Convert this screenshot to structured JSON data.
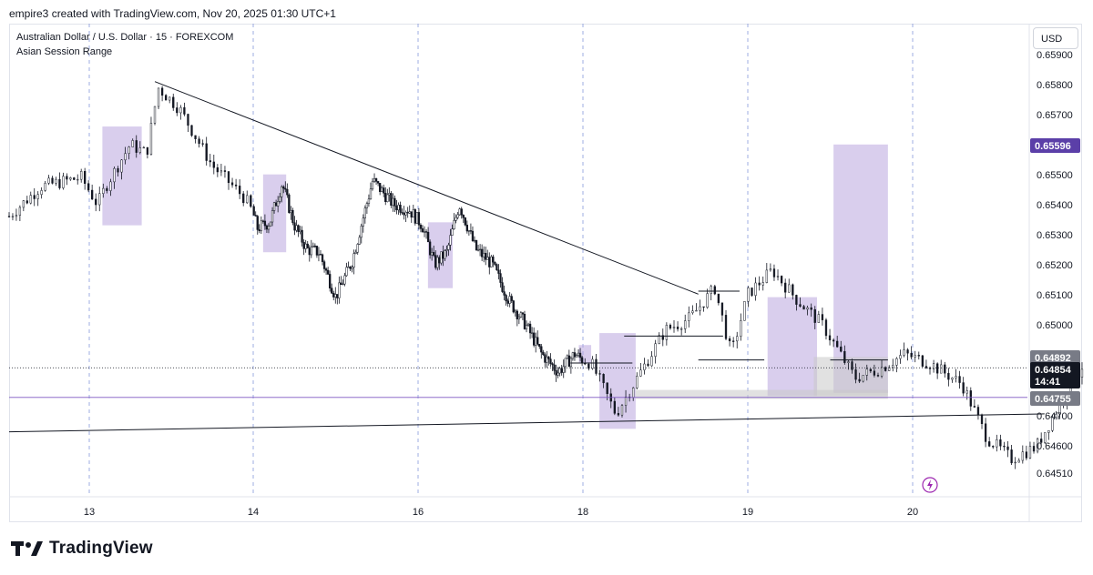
{
  "caption": "empire3 created with TradingView.com, Nov 20, 2025 01:30 UTC+1",
  "legend": {
    "symbol": "Australian Dollar / U.S. Dollar · 15 · FOREXCOM",
    "indicator": "Asian Session Range"
  },
  "currency_button": "USD",
  "brand": "TradingView",
  "colors": {
    "candle": "#131722",
    "session_box": "#b39ddb",
    "neutral_box": "#c8c8c8",
    "price_tag_dark": "#131722",
    "price_tag_purple": "#5b3fa8",
    "price_tag_gray": "#787b86",
    "grid_dash": "#6a7fd4",
    "h_line_purple": "#7e57c2"
  },
  "chart_data": {
    "type": "candlestick",
    "symbol": "AUDUSD",
    "timeframe": "15",
    "y_axis": {
      "ticks": [
        "0.65900",
        "0.65800",
        "0.65700",
        "0.65500",
        "0.65400",
        "0.65300",
        "0.65200",
        "0.65100",
        "0.65000",
        "0.64700",
        "0.64600",
        "0.64510"
      ],
      "highlight_labels": {
        "last_price": "0.64892",
        "current": "0.64854",
        "countdown": "14:41",
        "session_level": "0.65596",
        "lower_level": "0.64755"
      }
    },
    "x_axis": {
      "ticks": [
        "13",
        "14",
        "16",
        "18",
        "19",
        "20"
      ]
    },
    "trendlines": [
      {
        "name": "descending",
        "from": {
          "day": "13.4",
          "price": 0.6581
        },
        "to": {
          "day": "18.7",
          "price": 0.651
        }
      },
      {
        "name": "ascending",
        "from": {
          "day": "12.5",
          "price": 0.6464
        },
        "to": {
          "day": "20.8",
          "price": 0.647
        }
      }
    ],
    "price_path": [
      [
        12.5,
        0.6536
      ],
      [
        12.7,
        0.6546
      ],
      [
        12.95,
        0.6549
      ],
      [
        13.05,
        0.654
      ],
      [
        13.1,
        0.6546
      ],
      [
        13.25,
        0.656
      ],
      [
        13.35,
        0.6557
      ],
      [
        13.42,
        0.6579
      ],
      [
        13.55,
        0.6572
      ],
      [
        13.75,
        0.6553
      ],
      [
        13.95,
        0.6542
      ],
      [
        14.05,
        0.6532
      ],
      [
        14.2,
        0.6534
      ],
      [
        14.35,
        0.6547
      ],
      [
        14.5,
        0.6533
      ],
      [
        14.65,
        0.6525
      ],
      [
        14.8,
        0.6524
      ],
      [
        15.0,
        0.6509
      ],
      [
        15.2,
        0.6521
      ],
      [
        15.45,
        0.6548
      ],
      [
        15.7,
        0.654
      ],
      [
        15.9,
        0.6538
      ],
      [
        16.05,
        0.6533
      ],
      [
        16.2,
        0.652
      ],
      [
        16.35,
        0.6524
      ],
      [
        16.5,
        0.654
      ],
      [
        16.7,
        0.6525
      ],
      [
        16.9,
        0.652
      ],
      [
        17.1,
        0.6508
      ],
      [
        17.3,
        0.65
      ],
      [
        17.5,
        0.649
      ],
      [
        17.7,
        0.6484
      ],
      [
        17.9,
        0.649
      ],
      [
        18.05,
        0.6487
      ],
      [
        18.2,
        0.647
      ],
      [
        18.35,
        0.6484
      ],
      [
        18.5,
        0.6498
      ],
      [
        18.65,
        0.6502
      ],
      [
        18.8,
        0.6512
      ],
      [
        18.9,
        0.649
      ],
      [
        19.0,
        0.651
      ],
      [
        19.15,
        0.6518
      ],
      [
        19.3,
        0.6508
      ],
      [
        19.45,
        0.65
      ],
      [
        19.65,
        0.6482
      ],
      [
        19.8,
        0.6485
      ],
      [
        19.95,
        0.649
      ],
      [
        20.1,
        0.6487
      ],
      [
        20.3,
        0.648
      ],
      [
        20.45,
        0.6462
      ],
      [
        20.6,
        0.6455
      ],
      [
        20.75,
        0.6459
      ],
      [
        20.9,
        0.6474
      ],
      [
        21.05,
        0.6488
      ]
    ],
    "session_boxes": [
      {
        "x0": 13.08,
        "x1": 13.32,
        "low": 0.6533,
        "high": 0.6566
      },
      {
        "x0": 14.12,
        "x1": 14.4,
        "low": 0.6524,
        "high": 0.655
      },
      {
        "x0": 16.12,
        "x1": 16.42,
        "low": 0.6512,
        "high": 0.6534
      },
      {
        "x0": 17.95,
        "x1": 18.05,
        "low": 0.6487,
        "high": 0.6493
      },
      {
        "x0": 18.1,
        "x1": 18.32,
        "low": 0.6465,
        "high": 0.6497
      },
      {
        "x0": 19.12,
        "x1": 19.42,
        "low": 0.6476,
        "high": 0.6509
      },
      {
        "x0": 19.52,
        "x1": 19.85,
        "low": 0.6477,
        "high": 0.656
      }
    ],
    "neutral_boxes": [
      {
        "x0": 18.32,
        "x1": 19.85,
        "low": 0.6475,
        "high": 0.6478
      },
      {
        "x0": 19.4,
        "x1": 19.85,
        "low": 0.6476,
        "high": 0.6489
      }
    ],
    "horizontal_lines": [
      0.64854,
      0.64755
    ]
  }
}
